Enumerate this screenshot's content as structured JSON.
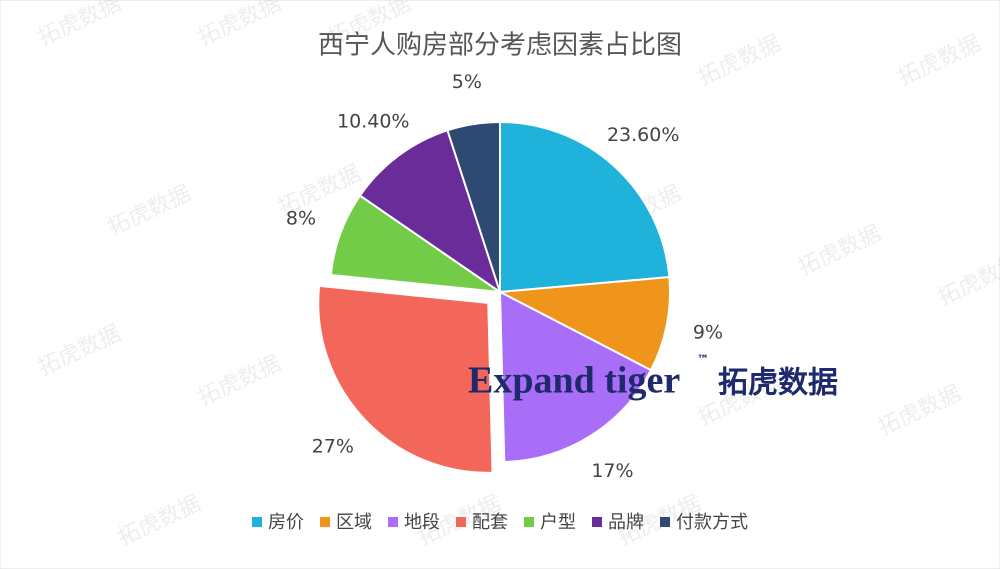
{
  "chart_data": {
    "type": "pie",
    "title": "西宁人购房部分考虑因素占比图",
    "categories": [
      "房价",
      "区域",
      "地段",
      "配套",
      "户型",
      "品牌",
      "付款方式"
    ],
    "values": [
      23.6,
      9,
      17,
      27,
      8,
      10.4,
      5
    ],
    "value_labels": [
      "23.60%",
      "9%",
      "17%",
      "27%",
      "8%",
      "10.40%",
      "5%"
    ],
    "colors": [
      "#1fb2da",
      "#f0951c",
      "#a96ef7",
      "#f2675a",
      "#72cc48",
      "#6a2c98",
      "#2f4a72"
    ],
    "explode": [
      false,
      false,
      false,
      true,
      false,
      false,
      false
    ],
    "legend": "bottom"
  },
  "watermark": {
    "brand": "Expand tiger",
    "tm": "™",
    "brand_cn": "拓虎数据"
  }
}
